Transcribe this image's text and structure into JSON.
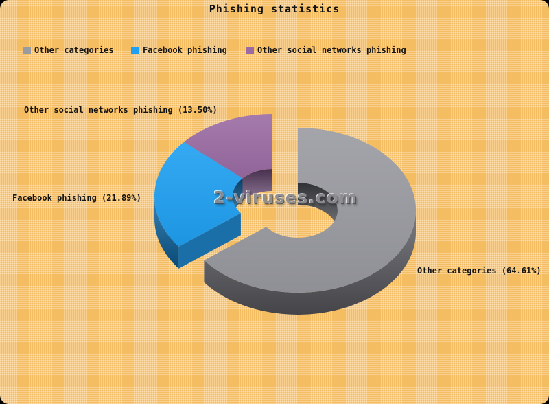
{
  "window": {
    "background": "#F5BD62",
    "outer_background": "#000000",
    "text_color": "#141414"
  },
  "title": "Phishing statistics",
  "watermark": "2-viruses.com",
  "legend": {
    "position": "top-left",
    "items": [
      {
        "label": "Other categories",
        "color": "#9A9BA1"
      },
      {
        "label": "Facebook phishing",
        "color": "#1FA0F2"
      },
      {
        "label": "Other social networks phishing",
        "color": "#9B6BA3"
      }
    ]
  },
  "chart_data": {
    "type": "pie",
    "style": "3d-donut-exploded",
    "title": "Phishing statistics",
    "categories": [
      "Other categories",
      "Facebook phishing",
      "Other social networks phishing"
    ],
    "values": [
      64.61,
      21.89,
      13.5
    ],
    "unit": "%",
    "slice_labels": [
      "Other categories (64.61%)",
      "Facebook phishing (21.89%)",
      "Other social networks phishing (13.50%)"
    ],
    "colors": [
      {
        "top": "#9A9BA1",
        "side": "#5E5F65",
        "inner": "#46474D"
      },
      {
        "top": "#1FA0F2",
        "side": "#0C66A4",
        "inner": "#0A5890"
      },
      {
        "top": "#9B6BA3",
        "side": "#71497B",
        "inner": "#654370"
      }
    ],
    "start_angle_deg": 0,
    "direction": "clockwise",
    "exploded_slice": "Other categories",
    "legend_position": "top-left",
    "watermark": "2-viruses.com"
  }
}
